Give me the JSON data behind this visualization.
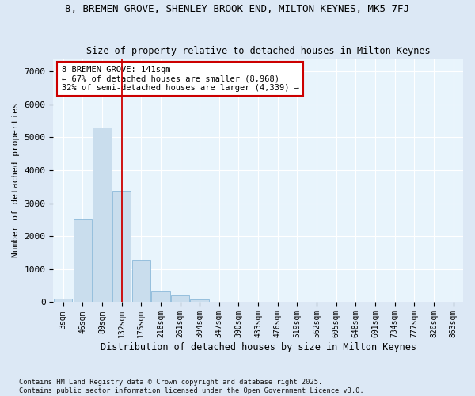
{
  "title1": "8, BREMEN GROVE, SHENLEY BROOK END, MILTON KEYNES, MK5 7FJ",
  "title2": "Size of property relative to detached houses in Milton Keynes",
  "xlabel": "Distribution of detached houses by size in Milton Keynes",
  "ylabel": "Number of detached properties",
  "bins": [
    "3sqm",
    "46sqm",
    "89sqm",
    "132sqm",
    "175sqm",
    "218sqm",
    "261sqm",
    "304sqm",
    "347sqm",
    "390sqm",
    "433sqm",
    "476sqm",
    "519sqm",
    "562sqm",
    "605sqm",
    "648sqm",
    "691sqm",
    "734sqm",
    "777sqm",
    "820sqm",
    "863sqm"
  ],
  "bar_values": [
    100,
    2500,
    5300,
    3380,
    1280,
    330,
    200,
    90,
    20,
    8,
    3,
    1,
    0,
    0,
    0,
    0,
    0,
    0,
    0,
    0,
    0
  ],
  "bar_color": "#c9dded",
  "bar_edge_color": "#7bafd4",
  "vline_bin_index": 3,
  "vline_color": "#cc0000",
  "annotation_text": "8 BREMEN GROVE: 141sqm\n← 67% of detached houses are smaller (8,968)\n32% of semi-detached houses are larger (4,339) →",
  "annotation_box_facecolor": "#ffffff",
  "annotation_box_edgecolor": "#cc0000",
  "ylim": [
    0,
    7400
  ],
  "yticks": [
    0,
    1000,
    2000,
    3000,
    4000,
    5000,
    6000,
    7000
  ],
  "footer1": "Contains HM Land Registry data © Crown copyright and database right 2025.",
  "footer2": "Contains public sector information licensed under the Open Government Licence v3.0.",
  "fig_bg_color": "#dce8f5",
  "plot_bg_color": "#e8f4fc"
}
